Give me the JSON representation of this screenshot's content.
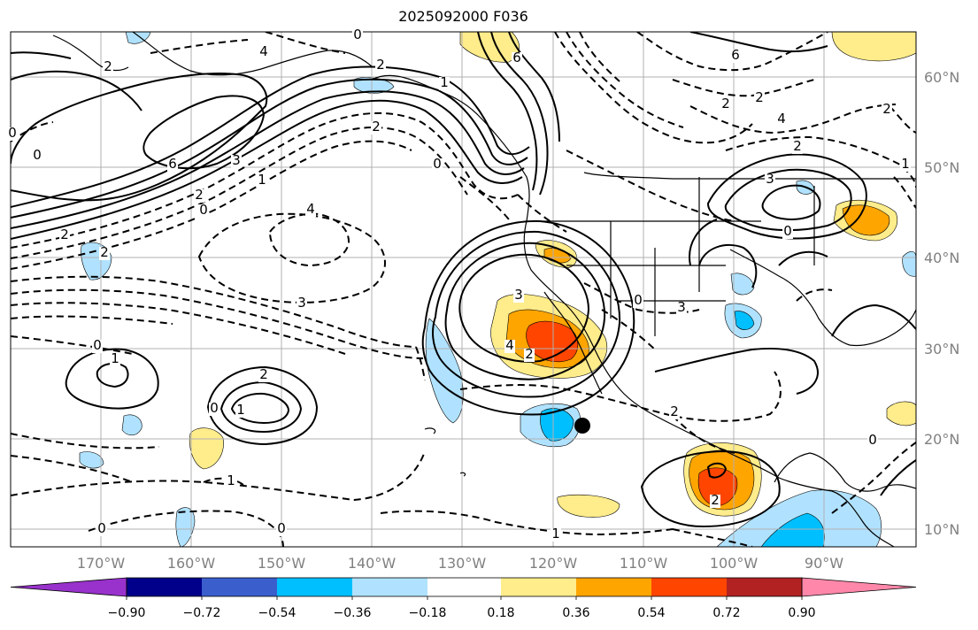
{
  "title": "2025092000 F036",
  "map": {
    "lon_ticks": [
      "170°W",
      "160°W",
      "150°W",
      "140°W",
      "130°W",
      "120°W",
      "110°W",
      "100°W",
      "90°W"
    ],
    "lat_ticks": [
      "10°N",
      "20°N",
      "30°N",
      "40°N",
      "50°N",
      "60°N"
    ],
    "grid": true,
    "contour_labels": [
      "0",
      "2",
      "6",
      "0",
      "0",
      "2",
      "4",
      "1",
      "2",
      "6",
      "3",
      "2",
      "1",
      "0",
      "4",
      "2",
      "0",
      "2",
      "3",
      "3",
      "4",
      "2",
      "0",
      "3",
      "2",
      "2",
      "4",
      "3",
      "2",
      "0",
      "6",
      "2",
      "1",
      "1",
      "0",
      "2",
      "0",
      "1",
      "2",
      "0",
      "1",
      "0",
      "0",
      "1",
      "2"
    ],
    "marker": "black-dot"
  },
  "colorbar": {
    "labels": [
      "−0.90",
      "−0.72",
      "−0.54",
      "−0.36",
      "−0.18",
      "0.18",
      "0.36",
      "0.54",
      "0.72",
      "0.90"
    ],
    "colors": [
      "#9932cc",
      "#00008b",
      "#3a5fcd",
      "#00bfff",
      "#b0e2ff",
      "#ffffff",
      "#ffec8b",
      "#ffa500",
      "#ff4500",
      "#b22222",
      "#ff88aa"
    ],
    "extend": "both"
  }
}
